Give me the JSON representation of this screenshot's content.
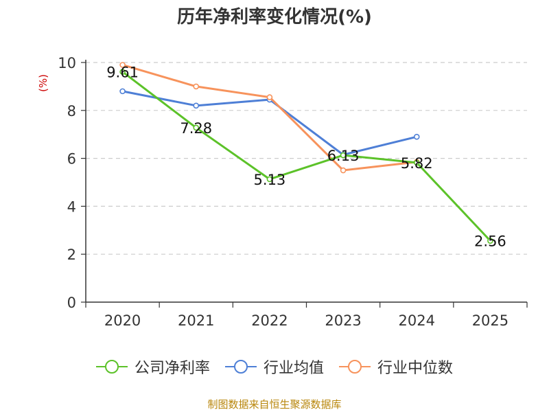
{
  "title": "历年净利率变化情况(%)",
  "footer": "制图数据来自恒生聚源数据库",
  "chart_data": {
    "type": "line",
    "title": "历年净利率变化情况(%)",
    "ylabel": "(%)",
    "xlabel": "",
    "ylim": [
      0,
      10
    ],
    "yticks": [
      0,
      2,
      4,
      6,
      8,
      10
    ],
    "categories": [
      "2020",
      "2021",
      "2022",
      "2023",
      "2024",
      "2025"
    ],
    "series": [
      {
        "name": "公司净利率",
        "color": "#5cc229",
        "values": [
          9.61,
          7.28,
          5.13,
          6.13,
          5.82,
          2.56
        ],
        "labels": [
          "9.61",
          "7.28",
          "5.13",
          "6.13",
          "5.82",
          "2.56"
        ]
      },
      {
        "name": "行业均值",
        "color": "#4e7fd6",
        "values": [
          8.8,
          8.2,
          8.45,
          6.15,
          6.9,
          null
        ]
      },
      {
        "name": "行业中位数",
        "color": "#f7935c",
        "values": [
          9.9,
          9.0,
          8.55,
          5.5,
          5.85,
          null
        ]
      }
    ],
    "legend_position": "bottom",
    "grid": true
  }
}
